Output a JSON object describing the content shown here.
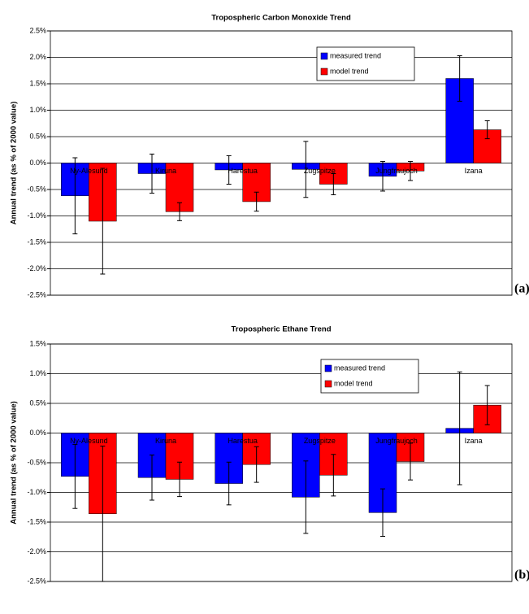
{
  "chart_data": [
    {
      "type": "bar",
      "title": "Tropospheric Carbon Monoxide Trend",
      "y_label": "Annual trend (as % of 2000 value)",
      "panel_label": "(a)",
      "categories": [
        "Ny-Alesund",
        "Kiruna",
        "Harestua",
        "Zugspitze",
        "Jungfraujoch",
        "Izana"
      ],
      "series": [
        {
          "name": "measured trend",
          "color": "#0000ff",
          "values": [
            -0.62,
            -0.2,
            -0.13,
            -0.12,
            -0.25,
            1.6
          ],
          "errors": [
            0.72,
            0.37,
            0.27,
            0.53,
            0.28,
            0.43
          ]
        },
        {
          "name": "model trend",
          "color": "#ff0000",
          "values": [
            -1.1,
            -0.92,
            -0.73,
            -0.4,
            -0.15,
            0.63
          ],
          "errors": [
            1.0,
            0.17,
            0.18,
            0.2,
            0.18,
            0.17
          ]
        }
      ],
      "ylim": [
        -2.5,
        2.5
      ],
      "yticks": [
        {
          "value": 2.5,
          "label": "2.5%"
        },
        {
          "value": 2,
          "label": "2.0%"
        },
        {
          "value": 1.5,
          "label": "1.5%"
        },
        {
          "value": 1,
          "label": "1.0%"
        },
        {
          "value": 0.5,
          "label": "0.5%"
        },
        {
          "value": 0,
          "label": "0.0%"
        },
        {
          "value": -0.5,
          "label": "-0.5%"
        },
        {
          "value": -1,
          "label": "-1.0%"
        },
        {
          "value": -1.5,
          "label": "-1.5%"
        },
        {
          "value": -2,
          "label": "-2.0%"
        },
        {
          "value": -2.5,
          "label": "-2.5%"
        }
      ],
      "grid": true
    },
    {
      "type": "bar",
      "title": "Tropospheric Ethane Trend",
      "y_label": "Annual trend (as % of 2000 value)",
      "panel_label": "(b)",
      "categories": [
        "Ny-Alesund",
        "Kiruna",
        "Harestua",
        "Zugspitze",
        "Jungfraujoch",
        "Izana"
      ],
      "series": [
        {
          "name": "measured trend",
          "color": "#0000ff",
          "values": [
            -0.73,
            -0.75,
            -0.85,
            -1.08,
            -1.34,
            0.08
          ],
          "errors": [
            0.54,
            0.38,
            0.36,
            0.61,
            0.4,
            0.95
          ]
        },
        {
          "name": "model trend",
          "color": "#ff0000",
          "values": [
            -1.36,
            -0.78,
            -0.53,
            -0.71,
            -0.48,
            0.47
          ],
          "errors": [
            1.14,
            0.29,
            0.3,
            0.35,
            0.31,
            0.33
          ]
        }
      ],
      "ylim": [
        -2.5,
        1.5
      ],
      "yticks": [
        {
          "value": 1.5,
          "label": "1.5%"
        },
        {
          "value": 1,
          "label": "1.0%"
        },
        {
          "value": 0.5,
          "label": "0.5%"
        },
        {
          "value": 0,
          "label": "0.0%"
        },
        {
          "value": -0.5,
          "label": "-0.5%"
        },
        {
          "value": -1,
          "label": "-1.0%"
        },
        {
          "value": -1.5,
          "label": "-1.5%"
        },
        {
          "value": -2,
          "label": "-2.0%"
        },
        {
          "value": -2.5,
          "label": "-2.5%"
        }
      ],
      "grid": true
    }
  ]
}
